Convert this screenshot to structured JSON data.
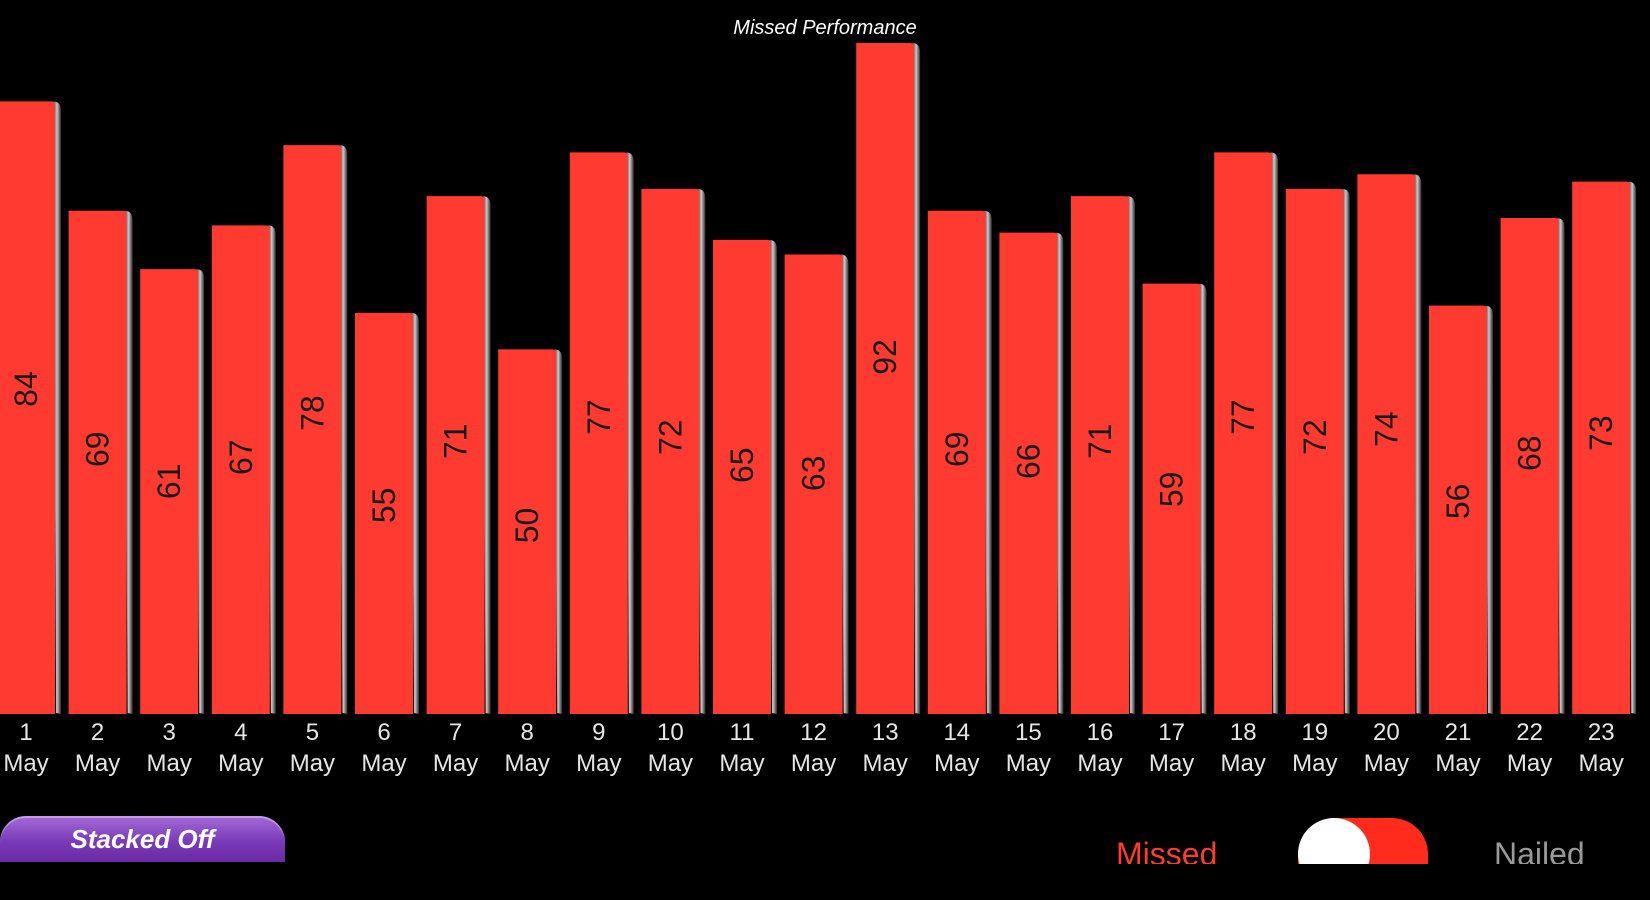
{
  "chart_data": {
    "type": "bar",
    "title": "Missed Performance",
    "categories": [
      "1 May",
      "2 May",
      "3 May",
      "4 May",
      "5 May",
      "6 May",
      "7 May",
      "8 May",
      "9 May",
      "10 May",
      "11 May",
      "12 May",
      "13 May",
      "14 May",
      "15 May",
      "16 May",
      "17 May",
      "18 May",
      "19 May",
      "20 May",
      "21 May",
      "22 May",
      "23 May"
    ],
    "series": [
      {
        "name": "Missed",
        "color": "#ff3a30",
        "values": [
          84,
          69,
          61,
          67,
          78,
          55,
          71,
          50,
          77,
          72,
          65,
          63,
          92,
          69,
          66,
          71,
          59,
          77,
          72,
          74,
          56,
          68,
          73
        ]
      }
    ],
    "ylim": [
      0,
      92
    ],
    "grid": false,
    "legend": "bottom"
  },
  "controls": {
    "stack_button_label": "Stacked Off",
    "legend_missed_label": "Missed",
    "legend_nailed_label": "Nailed",
    "toggle_on": true
  }
}
